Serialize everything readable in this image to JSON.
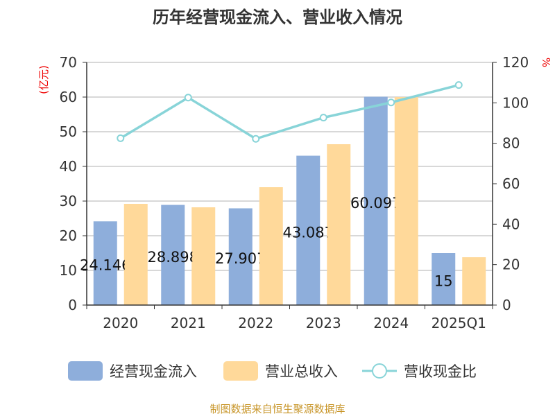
{
  "chart_data": {
    "type": "bar",
    "title": "历年经营现金流入、营业收入情况",
    "ylabel": "(亿元)",
    "y2label": "%",
    "categories": [
      "2020",
      "2021",
      "2022",
      "2023",
      "2024",
      "2025Q1"
    ],
    "ylim": [
      0,
      70
    ],
    "yticks": [
      0,
      10,
      20,
      30,
      40,
      50,
      60,
      70
    ],
    "y2lim": [
      0,
      120
    ],
    "y2ticks": [
      0,
      20,
      40,
      60,
      80,
      100,
      120
    ],
    "series": [
      {
        "name": "经营现金流入",
        "type": "bar",
        "color": "#8eaedb",
        "values": [
          24.146,
          28.898,
          27.907,
          43.087,
          60.097,
          15
        ],
        "labels": [
          "24.146",
          "28.898",
          "27.907",
          "43.087",
          "60.097",
          "15"
        ]
      },
      {
        "name": "营业总收入",
        "type": "bar",
        "color": "#ffd99a",
        "values": [
          29.2,
          28.2,
          34.0,
          46.4,
          60.0,
          13.8
        ]
      },
      {
        "name": "营收现金比",
        "type": "line",
        "axis": "right",
        "color": "#88d4d8",
        "values": [
          82.5,
          102.6,
          82.2,
          92.7,
          100.2,
          108.8
        ]
      }
    ],
    "legend": "bottom",
    "grid": true
  },
  "source": "制图数据来自恒生聚源数据库"
}
